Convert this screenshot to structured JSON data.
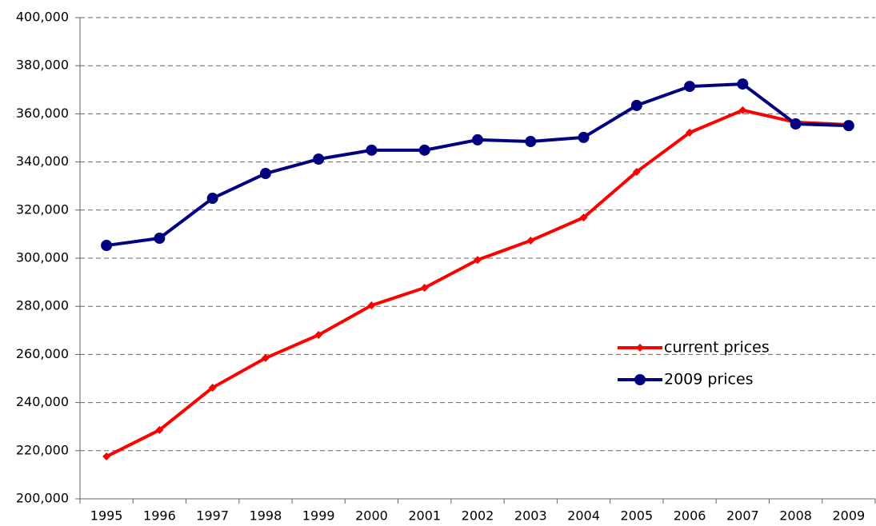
{
  "chart_data": {
    "type": "line",
    "categories": [
      "1995",
      "1996",
      "1997",
      "1998",
      "1999",
      "2000",
      "2001",
      "2002",
      "2003",
      "2004",
      "2005",
      "2006",
      "2007",
      "2008",
      "2009"
    ],
    "series": [
      {
        "name": "current prices",
        "color": "#ff0000",
        "marker": "diamond",
        "values": [
          217600,
          228600,
          246200,
          258500,
          268100,
          280400,
          287700,
          299300,
          307300,
          316900,
          335900,
          352200,
          361500,
          356500,
          355500
        ]
      },
      {
        "name": "2009 prices",
        "color": "#000080",
        "marker": "circle",
        "values": [
          305300,
          308300,
          324900,
          335200,
          341200,
          344900,
          344900,
          349200,
          348500,
          350200,
          363500,
          371400,
          372400,
          355800,
          355100
        ]
      }
    ],
    "ylim": [
      200000,
      400000
    ],
    "yticks": [
      {
        "value": 200000,
        "label": "200,000"
      },
      {
        "value": 220000,
        "label": "220,000"
      },
      {
        "value": 240000,
        "label": "240,000"
      },
      {
        "value": 260000,
        "label": "260,000"
      },
      {
        "value": 280000,
        "label": "280,000"
      },
      {
        "value": 300000,
        "label": "300,000"
      },
      {
        "value": 320000,
        "label": "320,000"
      },
      {
        "value": 340000,
        "label": "340,000"
      },
      {
        "value": 360000,
        "label": "360,000"
      },
      {
        "value": 380000,
        "label": "380,000"
      },
      {
        "value": 400000,
        "label": "400,000"
      }
    ],
    "grid": true,
    "legend": "right"
  }
}
